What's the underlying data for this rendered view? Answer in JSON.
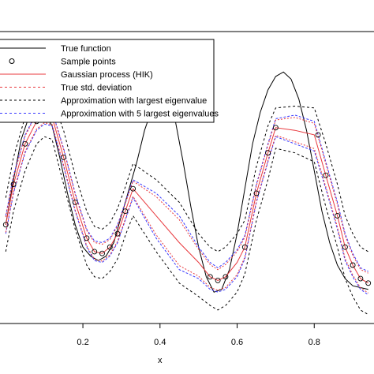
{
  "chart_data": {
    "type": "line",
    "xlabel": "x",
    "ylabel": "",
    "xlim": [
      -0.015,
      0.955
    ],
    "ylim": [
      -1.3,
      1.95
    ],
    "x_ticks": [
      0.2,
      0.4,
      0.6,
      0.8
    ],
    "x_tick_labels": [
      "0.2",
      "0.4",
      "0.6",
      "0.8"
    ],
    "legend_position": "top-left",
    "legend": [
      {
        "label": "True function",
        "color": "#000000",
        "style": "solid"
      },
      {
        "label": "Sample  points",
        "color": "#000000",
        "style": "marker"
      },
      {
        "label": "Gaussian process (HIK)",
        "color": "#e8383d",
        "style": "solid"
      },
      {
        "label": "True std. deviation",
        "color": "#e8383d",
        "style": "dashed"
      },
      {
        "label": "Approximation with largest eigenvalue",
        "color": "#000000",
        "style": "dashed"
      },
      {
        "label": "Approximation with 5 largest eigenvalues",
        "color": "#3a3aff",
        "style": "dashed"
      }
    ],
    "series": [
      {
        "name": "True function",
        "x": [
          0.0,
          0.02,
          0.04,
          0.06,
          0.08,
          0.1,
          0.12,
          0.14,
          0.16,
          0.18,
          0.2,
          0.22,
          0.24,
          0.26,
          0.28,
          0.3,
          0.32,
          0.34,
          0.36,
          0.38,
          0.4,
          0.42,
          0.44,
          0.46,
          0.48,
          0.5,
          0.52,
          0.54,
          0.56,
          0.58,
          0.6,
          0.62,
          0.64,
          0.66,
          0.68,
          0.7,
          0.72,
          0.74,
          0.76,
          0.78,
          0.8,
          0.82,
          0.84,
          0.86,
          0.88,
          0.9,
          0.92,
          0.94
        ],
        "y": [
          -0.2,
          0.3,
          0.75,
          1.0,
          1.08,
          1.05,
          0.9,
          0.55,
          0.15,
          -0.2,
          -0.45,
          -0.55,
          -0.6,
          -0.55,
          -0.4,
          -0.1,
          0.2,
          0.5,
          0.85,
          1.1,
          1.25,
          1.2,
          0.95,
          0.5,
          0.0,
          -0.45,
          -0.78,
          -0.95,
          -0.92,
          -0.7,
          -0.3,
          0.2,
          0.7,
          1.05,
          1.3,
          1.45,
          1.5,
          1.42,
          1.2,
          0.85,
          0.4,
          -0.05,
          -0.4,
          -0.65,
          -0.8,
          -0.88,
          -0.9,
          -0.92
        ]
      },
      {
        "name": "Gaussian process (HIK)",
        "x": [
          0.0,
          0.02,
          0.05,
          0.08,
          0.1,
          0.12,
          0.15,
          0.18,
          0.21,
          0.23,
          0.25,
          0.27,
          0.29,
          0.31,
          0.33,
          0.39,
          0.45,
          0.5,
          0.53,
          0.55,
          0.57,
          0.6,
          0.62,
          0.65,
          0.68,
          0.7,
          0.75,
          0.8,
          0.83,
          0.86,
          0.88,
          0.9,
          0.92,
          0.94
        ],
        "y": [
          -0.2,
          0.25,
          0.7,
          0.95,
          1.02,
          1.0,
          0.55,
          0.05,
          -0.35,
          -0.5,
          -0.52,
          -0.45,
          -0.3,
          -0.05,
          0.2,
          -0.1,
          -0.4,
          -0.62,
          -0.78,
          -0.82,
          -0.78,
          -0.62,
          -0.45,
          0.15,
          0.6,
          0.88,
          0.85,
          0.8,
          0.35,
          -0.1,
          -0.45,
          -0.65,
          -0.8,
          -0.85
        ]
      },
      {
        "name": "Upper envelope (largest eigenvalue)",
        "x": [
          0.0,
          0.02,
          0.05,
          0.08,
          0.1,
          0.12,
          0.15,
          0.18,
          0.21,
          0.23,
          0.25,
          0.27,
          0.29,
          0.31,
          0.33,
          0.39,
          0.45,
          0.5,
          0.53,
          0.55,
          0.57,
          0.6,
          0.62,
          0.65,
          0.68,
          0.7,
          0.75,
          0.8,
          0.83,
          0.86,
          0.88,
          0.9,
          0.92,
          0.94
        ],
        "y": [
          0.1,
          0.55,
          1.0,
          1.2,
          1.25,
          1.2,
          0.85,
          0.35,
          -0.05,
          -0.22,
          -0.25,
          -0.18,
          -0.02,
          0.22,
          0.48,
          0.3,
          0.05,
          -0.3,
          -0.45,
          -0.5,
          -0.45,
          -0.3,
          -0.15,
          0.45,
          0.9,
          1.1,
          1.12,
          1.1,
          0.7,
          0.25,
          -0.1,
          -0.3,
          -0.45,
          -0.5
        ]
      },
      {
        "name": "Lower envelope (largest eigenvalue)",
        "x": [
          0.0,
          0.02,
          0.05,
          0.08,
          0.1,
          0.12,
          0.15,
          0.18,
          0.21,
          0.23,
          0.25,
          0.27,
          0.29,
          0.31,
          0.33,
          0.39,
          0.45,
          0.5,
          0.53,
          0.55,
          0.57,
          0.6,
          0.62,
          0.65,
          0.68,
          0.7,
          0.75,
          0.8,
          0.83,
          0.86,
          0.88,
          0.9,
          0.92,
          0.94
        ],
        "y": [
          -0.5,
          -0.05,
          0.4,
          0.7,
          0.78,
          0.75,
          0.25,
          -0.25,
          -0.65,
          -0.78,
          -0.8,
          -0.72,
          -0.58,
          -0.32,
          -0.1,
          -0.5,
          -0.85,
          -1.0,
          -1.1,
          -1.15,
          -1.1,
          -0.95,
          -0.75,
          -0.15,
          0.3,
          0.65,
          0.6,
          0.5,
          0.0,
          -0.45,
          -0.8,
          -1.0,
          -1.15,
          -1.2
        ]
      },
      {
        "name": "Upper envelope (5 largest eigenvalues)",
        "x": [
          0.0,
          0.02,
          0.05,
          0.08,
          0.1,
          0.12,
          0.15,
          0.18,
          0.21,
          0.23,
          0.25,
          0.27,
          0.29,
          0.31,
          0.33,
          0.39,
          0.45,
          0.5,
          0.53,
          0.55,
          0.57,
          0.6,
          0.62,
          0.65,
          0.68,
          0.7,
          0.75,
          0.8,
          0.83,
          0.86,
          0.88,
          0.9,
          0.92,
          0.94
        ],
        "y": [
          -0.1,
          0.35,
          0.8,
          1.05,
          1.1,
          1.07,
          0.65,
          0.15,
          -0.25,
          -0.38,
          -0.4,
          -0.35,
          -0.2,
          0.05,
          0.3,
          0.15,
          -0.1,
          -0.45,
          -0.62,
          -0.68,
          -0.62,
          -0.48,
          -0.32,
          0.25,
          0.7,
          0.98,
          1.02,
          0.95,
          0.5,
          0.05,
          -0.3,
          -0.52,
          -0.68,
          -0.72
        ]
      },
      {
        "name": "Lower envelope (5 largest eigenvalues)",
        "x": [
          0.0,
          0.02,
          0.05,
          0.08,
          0.1,
          0.12,
          0.15,
          0.18,
          0.21,
          0.23,
          0.25,
          0.27,
          0.29,
          0.31,
          0.33,
          0.39,
          0.45,
          0.5,
          0.53,
          0.55,
          0.57,
          0.6,
          0.62,
          0.65,
          0.68,
          0.7,
          0.75,
          0.8,
          0.83,
          0.86,
          0.88,
          0.9,
          0.92,
          0.94
        ],
        "y": [
          -0.3,
          0.15,
          0.6,
          0.85,
          0.92,
          0.9,
          0.45,
          -0.05,
          -0.45,
          -0.6,
          -0.62,
          -0.55,
          -0.4,
          -0.15,
          0.1,
          -0.35,
          -0.7,
          -0.8,
          -0.92,
          -0.95,
          -0.92,
          -0.78,
          -0.58,
          0.05,
          0.5,
          0.78,
          0.7,
          0.62,
          0.2,
          -0.25,
          -0.6,
          -0.78,
          -0.92,
          -0.98
        ]
      },
      {
        "name": "Sample points",
        "x": [
          0.0,
          0.02,
          0.05,
          0.08,
          0.1,
          0.12,
          0.15,
          0.18,
          0.21,
          0.23,
          0.25,
          0.27,
          0.29,
          0.31,
          0.33,
          0.53,
          0.55,
          0.57,
          0.62,
          0.65,
          0.68,
          0.7,
          0.81,
          0.83,
          0.86,
          0.88,
          0.9,
          0.92,
          0.94
        ],
        "y": [
          -0.2,
          0.25,
          0.7,
          0.95,
          1.02,
          1.0,
          0.55,
          0.05,
          -0.35,
          -0.5,
          -0.52,
          -0.45,
          -0.3,
          -0.05,
          0.2,
          -0.78,
          -0.82,
          -0.78,
          -0.45,
          0.15,
          0.6,
          0.88,
          0.8,
          0.35,
          -0.1,
          -0.45,
          -0.65,
          -0.8,
          -0.85
        ]
      }
    ]
  }
}
